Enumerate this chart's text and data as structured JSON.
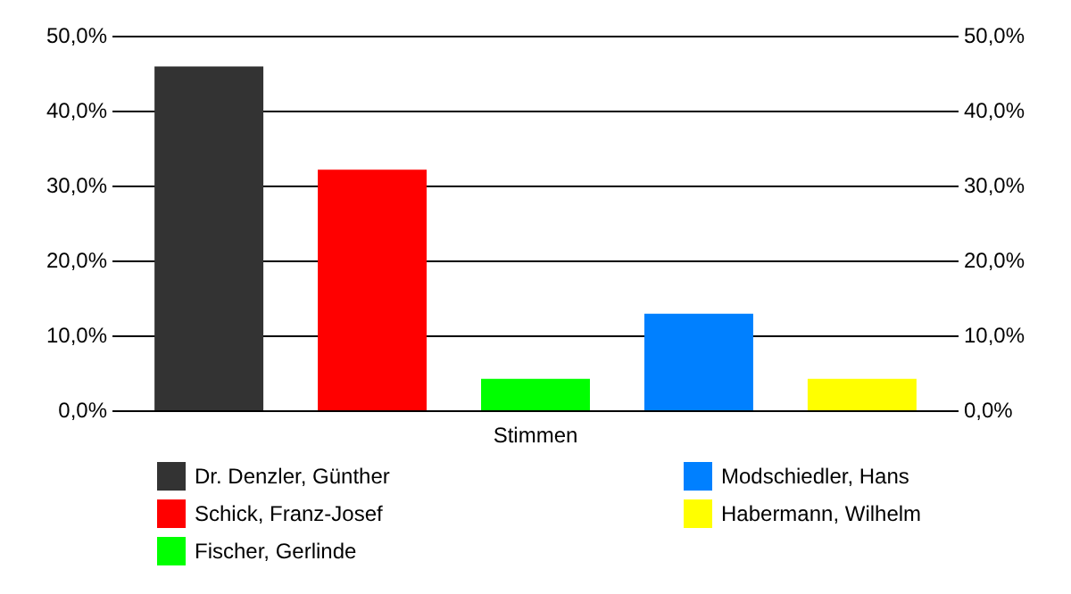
{
  "chart_data": {
    "type": "bar",
    "categories": [
      "Stimmen"
    ],
    "series": [
      {
        "name": "Dr. Denzler, Günther",
        "color": "#333333",
        "values": [
          45.9
        ]
      },
      {
        "name": "Schick, Franz-Josef",
        "color": "#ff0000",
        "values": [
          32.1
        ]
      },
      {
        "name": "Fischer, Gerlinde",
        "color": "#00ff00",
        "values": [
          4.2
        ]
      },
      {
        "name": "Modschiedler, Hans",
        "color": "#0080ff",
        "values": [
          12.9
        ]
      },
      {
        "name": "Habermann, Wilhelm",
        "color": "#ffff00",
        "values": [
          4.2
        ]
      }
    ],
    "ylim": [
      0,
      50
    ],
    "yticks": [
      {
        "value": 0,
        "label": "0,0%"
      },
      {
        "value": 10,
        "label": "10,0%"
      },
      {
        "value": 20,
        "label": "20,0%"
      },
      {
        "value": 30,
        "label": "30,0%"
      },
      {
        "value": 40,
        "label": "40,0%"
      },
      {
        "value": 50,
        "label": "50,0%"
      }
    ],
    "grid": "y",
    "legend": "bottom"
  }
}
